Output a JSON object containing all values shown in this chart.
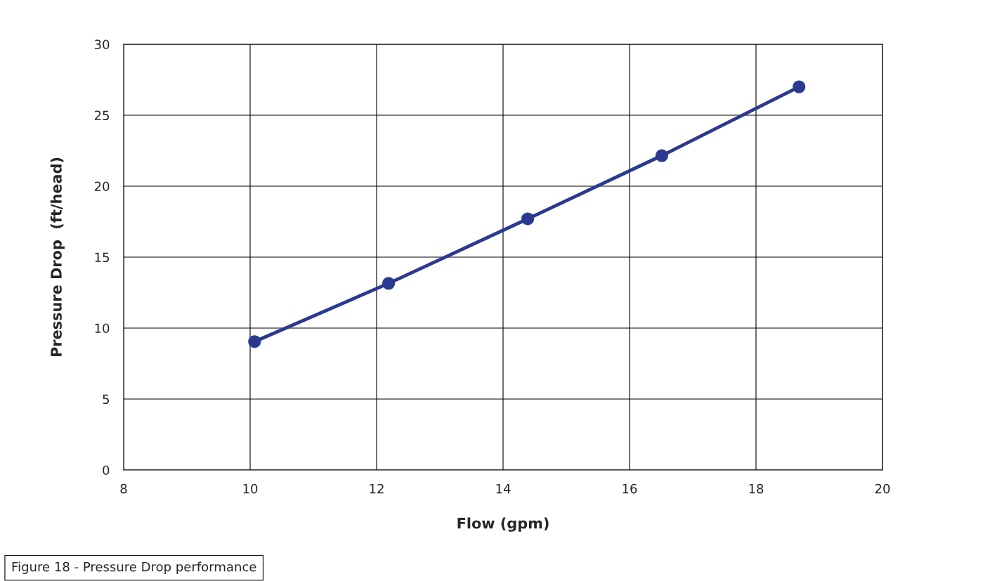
{
  "chart_data": {
    "type": "line",
    "xlabel": "Flow (gpm)",
    "ylabel": "Pressure Drop  (ft/head)",
    "x": [
      10.07,
      12.19,
      14.39,
      16.51,
      18.68
    ],
    "series": [
      {
        "color": "#2b3990",
        "values": [
          9.05,
          13.15,
          17.7,
          22.15,
          27.0
        ]
      }
    ],
    "xlim": [
      8,
      20
    ],
    "xticks": [
      8,
      10,
      12,
      14,
      16,
      18,
      20
    ],
    "ylim": [
      0,
      30
    ],
    "yticks": [
      0,
      5,
      10,
      15,
      20,
      25,
      30
    ],
    "grid": true,
    "marker": "circle",
    "line_style": "solid",
    "annotations": [
      "Figure 18 - Pressure Drop performance"
    ]
  }
}
